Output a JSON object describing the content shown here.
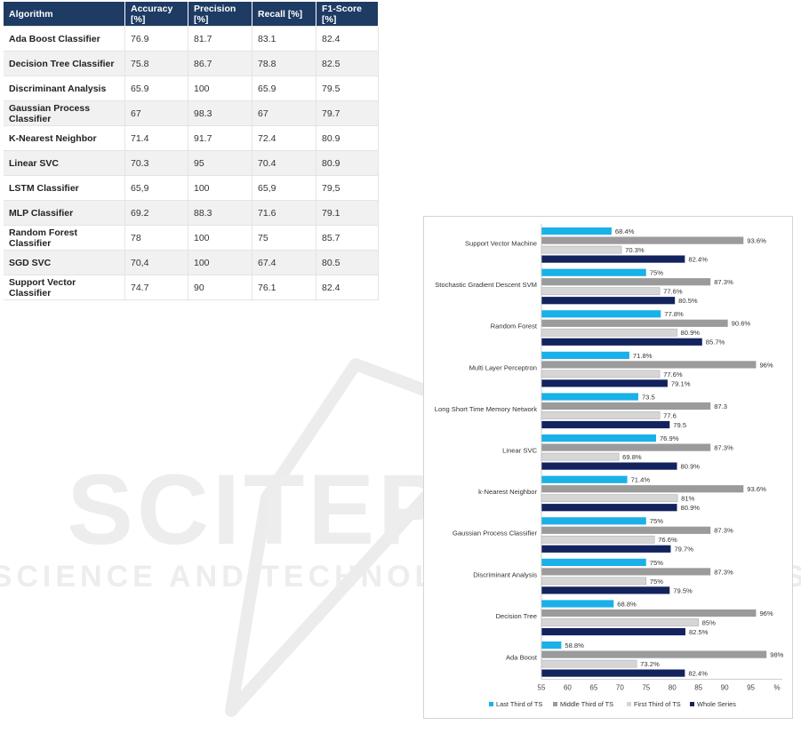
{
  "table": {
    "headers": [
      "Algorithm",
      "Accuracy [%]",
      "Precision [%]",
      "Recall [%]",
      "F1-Score [%]"
    ],
    "rows": [
      [
        "Ada Boost Classifier",
        "76.9",
        "81.7",
        "83.1",
        "82.4"
      ],
      [
        "Decision Tree Classifier",
        "75.8",
        "86.7",
        "78.8",
        "82.5"
      ],
      [
        "Discriminant  Analysis",
        "65.9",
        "100",
        "65.9",
        "79.5"
      ],
      [
        "Gaussian Process Classifier",
        "67",
        "98.3",
        "67",
        "79.7"
      ],
      [
        "K-Nearest Neighbor",
        "71.4",
        "91.7",
        "72.4",
        "80.9"
      ],
      [
        "Linear SVC",
        "70.3",
        "95",
        "70.4",
        "80.9"
      ],
      [
        "LSTM Classifier",
        "65,9",
        "100",
        "65,9",
        "79,5"
      ],
      [
        "MLP Classifier",
        "69.2",
        "88.3",
        "71.6",
        "79.1"
      ],
      [
        "Random Forest Classifier",
        "78",
        "100",
        "75",
        "85.7"
      ],
      [
        "SGD SVC",
        "70,4",
        "100",
        "67.4",
        "80.5"
      ],
      [
        "Support  Vector Classifier",
        "74.7",
        "90",
        "76.1",
        "82.4"
      ]
    ]
  },
  "colors": {
    "header_bg": "#1d3b63",
    "series": [
      "#1ab0e8",
      "#9b9b9b",
      "#d6d6d6",
      "#13235e"
    ]
  },
  "chart_data": {
    "type": "bar",
    "orientation": "horizontal",
    "categories": [
      "Support Vector Machine",
      "Stochastic Gradient Descent SVM",
      "Random Forest",
      "Multi Layer Perceptron",
      "Long Short Time Memory Network",
      "Linear SVC",
      "k-Nearest Neighbor",
      "Gaussian Process Classifier",
      "Discriminant Analysis",
      "Decision Tree",
      "Ada Boost"
    ],
    "series": [
      {
        "name": "Last Third of TS",
        "values": [
          68.4,
          75,
          77.8,
          71.8,
          73.5,
          76.9,
          71.4,
          75,
          75,
          68.8,
          58.8
        ],
        "labels": [
          "68.4%",
          "75%",
          "77.8%",
          "71.8%",
          "73.5",
          "76.9%",
          "71.4%",
          "75%",
          "75%",
          "68.8%",
          "58.8%"
        ]
      },
      {
        "name": "Middle Third of TS",
        "values": [
          93.6,
          87.3,
          90.6,
          96,
          87.3,
          87.3,
          93.6,
          87.3,
          87.3,
          96,
          98
        ],
        "labels": [
          "93.6%",
          "87.3%",
          "90.6%",
          "96%",
          "87.3",
          "87.3%",
          "93.6%",
          "87.3%",
          "87.3%",
          "96%",
          "98%"
        ]
      },
      {
        "name": "First Third of TS",
        "values": [
          70.3,
          77.6,
          80.9,
          77.6,
          77.6,
          69.8,
          81,
          76.6,
          75,
          85,
          73.2
        ],
        "labels": [
          "70.3%",
          "77.6%",
          "80.9%",
          "77.6%",
          "77.6",
          "69.8%",
          "81%",
          "76.6%",
          "75%",
          "85%",
          "73.2%"
        ]
      },
      {
        "name": "Whole Series",
        "values": [
          82.4,
          80.5,
          85.7,
          79.1,
          79.5,
          80.9,
          80.9,
          79.7,
          79.5,
          82.5,
          82.4
        ],
        "labels": [
          "82.4%",
          "80.5%",
          "85.7%",
          "79.1%",
          "79.5",
          "80.9%",
          "80.9%",
          "79.7%",
          "79.5%",
          "82.5%",
          "82.4%"
        ]
      }
    ],
    "x_ticks": [
      "55",
      "60",
      "65",
      "70",
      "75",
      "80",
      "85",
      "90",
      "95",
      "%"
    ],
    "xlim": [
      55,
      100
    ],
    "grid": false,
    "legend_position": "bottom"
  }
}
